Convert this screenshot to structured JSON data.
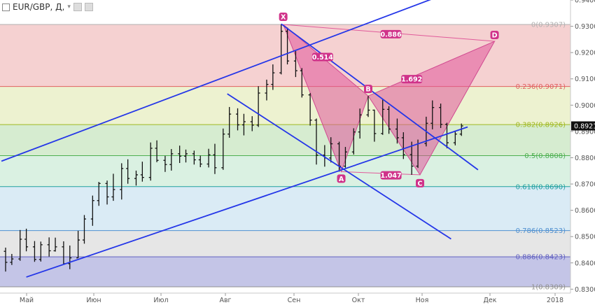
{
  "header": {
    "symbol": "EUR/GBP, Д,",
    "caret": "▾"
  },
  "chart_data": {
    "type": "candlestick-harmonic",
    "x_labels": [
      "Май",
      "Июн",
      "Июл",
      "Авг",
      "Сен",
      "Окт",
      "Ноя",
      "Дек",
      "2018"
    ],
    "y_ticks": [
      "0.9400",
      "0.9300",
      "0.9200",
      "0.9100",
      "0.9000",
      "0.8900",
      "0.8800",
      "0.8700",
      "0.8600",
      "0.8500",
      "0.8400",
      "0.8300"
    ],
    "ylim": [
      0.8285,
      0.94
    ],
    "current_price": "0.8921",
    "fib_levels": [
      {
        "label": "0(0.9307)",
        "value": 0.9307,
        "color": "#b0b0b0"
      },
      {
        "label": "0.236(0.9071)",
        "value": 0.9071,
        "color": "#e06060"
      },
      {
        "label": "0.382(0.8926)",
        "value": 0.8926,
        "color": "#a0b820"
      },
      {
        "label": "0.5(0.8808)",
        "value": 0.8808,
        "color": "#4caf50"
      },
      {
        "label": "0.618(0.8690)",
        "value": 0.869,
        "color": "#20a0a0"
      },
      {
        "label": "0.786(0.8523)",
        "value": 0.8523,
        "color": "#5090d0"
      },
      {
        "label": "0.886(0.8423)",
        "value": 0.8423,
        "color": "#6060c0"
      },
      {
        "label": "1(0.8309)",
        "value": 0.8309,
        "color": "#909090"
      }
    ],
    "fib_band_colors": [
      "#f3c9c9",
      "#eaf0c8",
      "#cfe9c8",
      "#d3eedd",
      "#d4e8f3",
      "#e2e2e2",
      "#babbe3"
    ],
    "pattern_points": [
      {
        "label": "X",
        "date": "Aug 29",
        "price": 0.9307
      },
      {
        "label": "A",
        "date": "Sep 26",
        "price": 0.8747
      },
      {
        "label": "B",
        "date": "Oct 9",
        "price": 0.9035
      },
      {
        "label": "C",
        "date": "Nov 3",
        "price": 0.8735
      },
      {
        "label": "D",
        "date": "Dec 9",
        "price": 0.9243
      }
    ],
    "ratios": [
      {
        "label": "0.514",
        "date": "Sep 17",
        "price": 0.9183
      },
      {
        "label": "1.692",
        "date": "Oct 30",
        "price": 0.9099
      },
      {
        "label": "0.886",
        "date": "Oct 20",
        "price": 0.927
      },
      {
        "label": "1.047",
        "date": "Oct 20",
        "price": 0.8733
      }
    ],
    "trend_lines": [
      {
        "from": {
          "date": "Apr 15",
          "price": 0.8787
        },
        "to": {
          "date": "Nov 20",
          "price": 0.9437
        }
      },
      {
        "from": {
          "date": "Apr 27",
          "price": 0.8346
        },
        "to": {
          "date": "Nov 26",
          "price": 0.8917
        }
      },
      {
        "from": {
          "date": "Aug 28",
          "price": 0.9309
        },
        "to": {
          "date": "Dec 1",
          "price": 0.8754
        }
      },
      {
        "from": {
          "date": "Aug 2",
          "price": 0.9043
        },
        "to": {
          "date": "Nov 18",
          "price": 0.8491
        }
      }
    ],
    "ohlc": [
      {
        "date": "Apr 17",
        "open": 0.8444,
        "high": 0.8458,
        "low": 0.8367,
        "close": 0.8402
      },
      {
        "date": "Apr 20",
        "open": 0.8402,
        "high": 0.8434,
        "low": 0.8392,
        "close": 0.8415
      },
      {
        "date": "Apr 24",
        "open": 0.8415,
        "high": 0.8525,
        "low": 0.8408,
        "close": 0.849
      },
      {
        "date": "Apr 27",
        "open": 0.849,
        "high": 0.853,
        "low": 0.8444,
        "close": 0.8461
      },
      {
        "date": "May 1",
        "open": 0.8461,
        "high": 0.8483,
        "low": 0.8404,
        "close": 0.8413
      },
      {
        "date": "May 4",
        "open": 0.8413,
        "high": 0.8481,
        "low": 0.8405,
        "close": 0.8469
      },
      {
        "date": "May 8",
        "open": 0.8469,
        "high": 0.8497,
        "low": 0.8424,
        "close": 0.8446
      },
      {
        "date": "May 11",
        "open": 0.8446,
        "high": 0.8496,
        "low": 0.8443,
        "close": 0.8461
      },
      {
        "date": "May 15",
        "open": 0.8461,
        "high": 0.8482,
        "low": 0.8393,
        "close": 0.8397
      },
      {
        "date": "May 18",
        "open": 0.8397,
        "high": 0.8466,
        "low": 0.8376,
        "close": 0.8419
      },
      {
        "date": "May 22",
        "open": 0.8419,
        "high": 0.8522,
        "low": 0.8418,
        "close": 0.8487
      },
      {
        "date": "May 25",
        "open": 0.8487,
        "high": 0.8582,
        "low": 0.8473,
        "close": 0.8567
      },
      {
        "date": "May 29",
        "open": 0.8567,
        "high": 0.8656,
        "low": 0.8541,
        "close": 0.8637
      },
      {
        "date": "Jun 1",
        "open": 0.8637,
        "high": 0.8708,
        "low": 0.8617,
        "close": 0.8702
      },
      {
        "date": "Jun 5",
        "open": 0.8702,
        "high": 0.8713,
        "low": 0.8622,
        "close": 0.8651
      },
      {
        "date": "Jun 8",
        "open": 0.8651,
        "high": 0.8739,
        "low": 0.8636,
        "close": 0.8679
      },
      {
        "date": "Jun 12",
        "open": 0.8679,
        "high": 0.8779,
        "low": 0.8641,
        "close": 0.8759
      },
      {
        "date": "Jun 15",
        "open": 0.8759,
        "high": 0.8794,
        "low": 0.8701,
        "close": 0.8721
      },
      {
        "date": "Jun 19",
        "open": 0.8721,
        "high": 0.8751,
        "low": 0.8694,
        "close": 0.8735
      },
      {
        "date": "Jun 22",
        "open": 0.8735,
        "high": 0.8785,
        "low": 0.8709,
        "close": 0.8725
      },
      {
        "date": "Jun 26",
        "open": 0.8725,
        "high": 0.8858,
        "low": 0.8713,
        "close": 0.8836
      },
      {
        "date": "Jun 29",
        "open": 0.8836,
        "high": 0.8866,
        "low": 0.8783,
        "close": 0.879
      },
      {
        "date": "Jul 3",
        "open": 0.879,
        "high": 0.8807,
        "low": 0.8746,
        "close": 0.8774
      },
      {
        "date": "Jul 6",
        "open": 0.8774,
        "high": 0.8833,
        "low": 0.8751,
        "close": 0.8815
      },
      {
        "date": "Jul 10",
        "open": 0.8815,
        "high": 0.8846,
        "low": 0.878,
        "close": 0.8806
      },
      {
        "date": "Jul 13",
        "open": 0.8806,
        "high": 0.8831,
        "low": 0.8782,
        "close": 0.8815
      },
      {
        "date": "Jul 17",
        "open": 0.8815,
        "high": 0.8827,
        "low": 0.8774,
        "close": 0.8792
      },
      {
        "date": "Jul 20",
        "open": 0.8792,
        "high": 0.8808,
        "low": 0.8764,
        "close": 0.8776
      },
      {
        "date": "Jul 24",
        "open": 0.8776,
        "high": 0.8834,
        "low": 0.8763,
        "close": 0.8811
      },
      {
        "date": "Jul 27",
        "open": 0.8811,
        "high": 0.8853,
        "low": 0.8738,
        "close": 0.8762
      },
      {
        "date": "Jul 31",
        "open": 0.8762,
        "high": 0.8911,
        "low": 0.8754,
        "close": 0.889
      },
      {
        "date": "Aug 3",
        "open": 0.889,
        "high": 0.8993,
        "low": 0.8876,
        "close": 0.8966
      },
      {
        "date": "Aug 7",
        "open": 0.8966,
        "high": 0.8988,
        "low": 0.8904,
        "close": 0.8925
      },
      {
        "date": "Aug 10",
        "open": 0.8925,
        "high": 0.8967,
        "low": 0.8885,
        "close": 0.8937
      },
      {
        "date": "Aug 14",
        "open": 0.8937,
        "high": 0.8958,
        "low": 0.8901,
        "close": 0.8924
      },
      {
        "date": "Aug 17",
        "open": 0.8924,
        "high": 0.9072,
        "low": 0.8917,
        "close": 0.9046
      },
      {
        "date": "Aug 21",
        "open": 0.9046,
        "high": 0.9097,
        "low": 0.9018,
        "close": 0.9079
      },
      {
        "date": "Aug 24",
        "open": 0.9079,
        "high": 0.9155,
        "low": 0.9058,
        "close": 0.9123
      },
      {
        "date": "Aug 28",
        "open": 0.9123,
        "high": 0.9307,
        "low": 0.9117,
        "close": 0.9281
      },
      {
        "date": "Aug 31",
        "open": 0.9281,
        "high": 0.9295,
        "low": 0.9155,
        "close": 0.9168
      },
      {
        "date": "Sep 4",
        "open": 0.9168,
        "high": 0.9206,
        "low": 0.9107,
        "close": 0.9131
      },
      {
        "date": "Sep 7",
        "open": 0.9131,
        "high": 0.9141,
        "low": 0.9029,
        "close": 0.9039
      },
      {
        "date": "Sep 11",
        "open": 0.9039,
        "high": 0.9046,
        "low": 0.8922,
        "close": 0.8943
      },
      {
        "date": "Sep 14",
        "open": 0.8943,
        "high": 0.8949,
        "low": 0.8774,
        "close": 0.881
      },
      {
        "date": "Sep 18",
        "open": 0.881,
        "high": 0.8848,
        "low": 0.8766,
        "close": 0.8799
      },
      {
        "date": "Sep 21",
        "open": 0.8799,
        "high": 0.8878,
        "low": 0.8782,
        "close": 0.8853
      },
      {
        "date": "Sep 25",
        "open": 0.8853,
        "high": 0.8861,
        "low": 0.8747,
        "close": 0.8768
      },
      {
        "date": "Sep 28",
        "open": 0.8768,
        "high": 0.8841,
        "low": 0.8762,
        "close": 0.8822
      },
      {
        "date": "Oct 2",
        "open": 0.8822,
        "high": 0.8912,
        "low": 0.8812,
        "close": 0.8898
      },
      {
        "date": "Oct 5",
        "open": 0.8898,
        "high": 0.8987,
        "low": 0.8873,
        "close": 0.8963
      },
      {
        "date": "Oct 9",
        "open": 0.8963,
        "high": 0.9035,
        "low": 0.8955,
        "close": 0.8981
      },
      {
        "date": "Oct 12",
        "open": 0.8981,
        "high": 0.8983,
        "low": 0.8861,
        "close": 0.8892
      },
      {
        "date": "Oct 16",
        "open": 0.8892,
        "high": 0.9023,
        "low": 0.8887,
        "close": 0.8984
      },
      {
        "date": "Oct 19",
        "open": 0.8984,
        "high": 0.8996,
        "low": 0.8891,
        "close": 0.8909
      },
      {
        "date": "Oct 23",
        "open": 0.8909,
        "high": 0.8949,
        "low": 0.8854,
        "close": 0.8876
      },
      {
        "date": "Oct 26",
        "open": 0.8876,
        "high": 0.8897,
        "low": 0.8795,
        "close": 0.8812
      },
      {
        "date": "Oct 30",
        "open": 0.8812,
        "high": 0.8861,
        "low": 0.8735,
        "close": 0.8768
      },
      {
        "date": "Nov 2",
        "open": 0.8768,
        "high": 0.8869,
        "low": 0.8761,
        "close": 0.8854
      },
      {
        "date": "Nov 6",
        "open": 0.8854,
        "high": 0.8956,
        "low": 0.8843,
        "close": 0.8931
      },
      {
        "date": "Nov 9",
        "open": 0.8931,
        "high": 0.9018,
        "low": 0.8908,
        "close": 0.8991
      },
      {
        "date": "Nov 13",
        "open": 0.8991,
        "high": 0.9006,
        "low": 0.8913,
        "close": 0.8927
      },
      {
        "date": "Nov 16",
        "open": 0.8927,
        "high": 0.8933,
        "low": 0.8836,
        "close": 0.8857
      },
      {
        "date": "Nov 20",
        "open": 0.8857,
        "high": 0.8903,
        "low": 0.8847,
        "close": 0.889
      },
      {
        "date": "Nov 23",
        "open": 0.889,
        "high": 0.893,
        "low": 0.8883,
        "close": 0.8921
      }
    ]
  }
}
